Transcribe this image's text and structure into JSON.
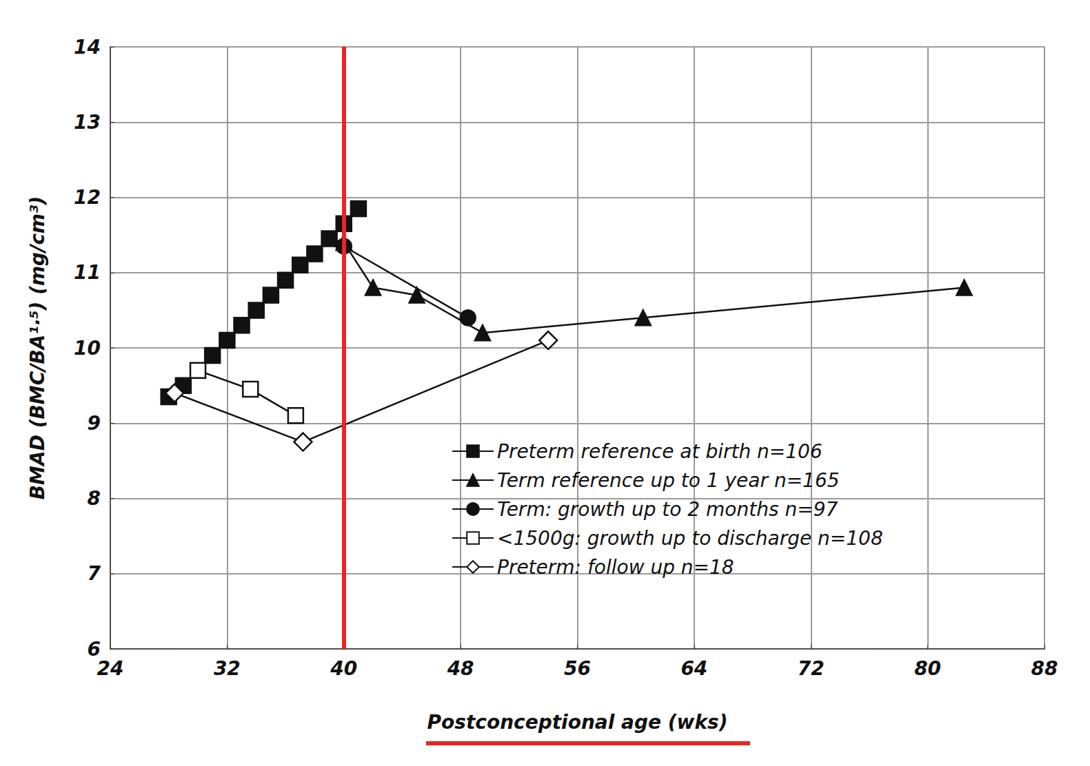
{
  "chart_data": {
    "type": "line",
    "x_label": "Postconceptional age (wks)",
    "y_label": "BMAD (BMC/BA¹·⁵) (mg/cm³)",
    "xlim": [
      24,
      88
    ],
    "xticks": [
      24,
      32,
      40,
      48,
      56,
      64,
      72,
      80,
      88
    ],
    "ylim": [
      6,
      14
    ],
    "yticks": [
      6,
      7,
      8,
      9,
      10,
      11,
      12,
      13,
      14
    ],
    "grid": true,
    "legend": "lower right",
    "reference_line": {
      "x": 40,
      "color": "#e8261f"
    },
    "series": [
      {
        "name": "Preterm reference at birth n=106",
        "color": "#111111",
        "marker": "square",
        "line_style": "solid",
        "x": [
          28,
          29,
          31,
          32,
          33,
          34,
          35,
          36,
          37,
          38,
          39,
          40,
          41
        ],
        "values": [
          9.35,
          9.5,
          9.9,
          10.1,
          10.3,
          10.5,
          10.7,
          10.9,
          11.1,
          11.25,
          11.45,
          11.65,
          11.85
        ]
      },
      {
        "name": "Term reference up to 1 year n=165",
        "color": "#111111",
        "marker": "triangle",
        "line_style": "solid",
        "x": [
          40,
          42,
          45,
          49.5,
          60.5,
          82.5
        ],
        "values": [
          11.4,
          10.8,
          10.7,
          10.2,
          10.4,
          10.8
        ]
      },
      {
        "name": "Term: growth up to 2 months n=97",
        "color": "#111111",
        "marker": "circle",
        "line_style": "solid",
        "x": [
          40,
          48.5
        ],
        "values": [
          11.35,
          10.4
        ]
      },
      {
        "name": "<1500g: growth up to discharge n=108",
        "color": "#111111",
        "marker": "square-open",
        "line_style": "solid",
        "x": [
          30,
          33.6,
          36.7
        ],
        "values": [
          9.7,
          9.45,
          9.1
        ]
      },
      {
        "name": "Preterm: follow up n=18",
        "color": "#111111",
        "marker": "diamond-open",
        "line_style": "solid",
        "x": [
          28.4,
          37.2,
          54
        ],
        "values": [
          9.4,
          8.75,
          10.1
        ]
      }
    ]
  }
}
